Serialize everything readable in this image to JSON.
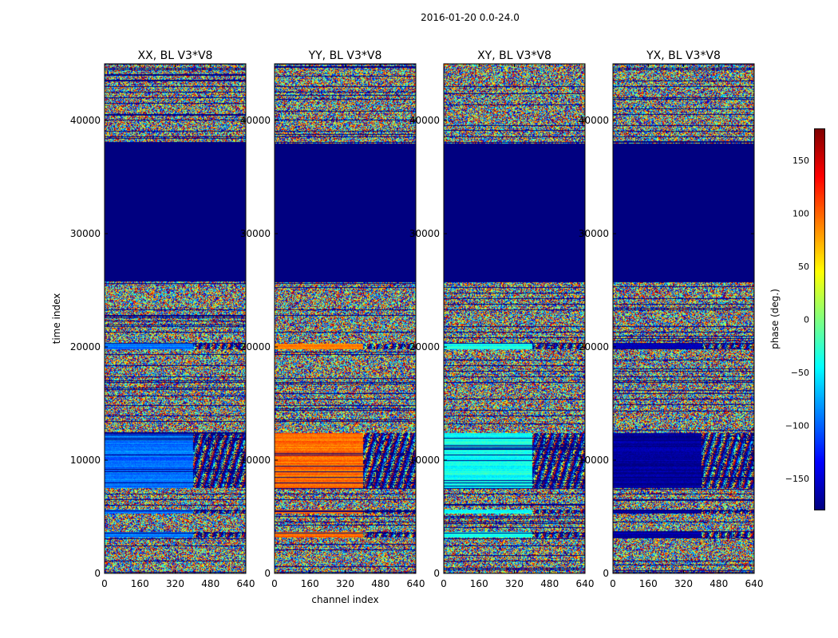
{
  "figure": {
    "suptitle": "2016-01-20 0.0-24.0"
  },
  "chart_data": [
    {
      "type": "heatmap",
      "title": "XX, BL V3*V8",
      "xlabel": "",
      "ylabel": "time index",
      "xlim": [
        0,
        640
      ],
      "ylim": [
        0,
        45000
      ],
      "xticks": [
        0,
        160,
        320,
        480,
        640
      ],
      "yticks": [
        0,
        10000,
        20000,
        30000,
        40000
      ],
      "base_phase": -95,
      "break_channel": 400
    },
    {
      "type": "heatmap",
      "title": "YY, BL V3*V8",
      "xlabel": "channel index",
      "ylabel": "",
      "xlim": [
        0,
        640
      ],
      "ylim": [
        0,
        45000
      ],
      "xticks": [
        0,
        160,
        320,
        480,
        640
      ],
      "yticks": [
        0,
        10000,
        20000,
        30000,
        40000
      ],
      "base_phase": 95,
      "break_channel": 400
    },
    {
      "type": "heatmap",
      "title": "XY, BL V3*V8",
      "xlabel": "",
      "ylabel": "",
      "xlim": [
        0,
        640
      ],
      "ylim": [
        0,
        45000
      ],
      "xticks": [
        0,
        160,
        320,
        480,
        640
      ],
      "yticks": [
        0,
        10000,
        20000,
        30000,
        40000
      ],
      "base_phase": -40,
      "break_channel": 400
    },
    {
      "type": "heatmap",
      "title": "YX, BL V3*V8",
      "xlabel": "",
      "ylabel": "",
      "xlim": [
        0,
        640
      ],
      "ylim": [
        0,
        45000
      ],
      "xticks": [
        0,
        160,
        320,
        480,
        640
      ],
      "yticks": [
        0,
        10000,
        20000,
        30000,
        40000
      ],
      "base_phase": -170,
      "break_channel": 400
    }
  ],
  "colorbar": {
    "label": "phase (deg.)",
    "range": [
      -180,
      180
    ],
    "ticks": [
      150,
      100,
      50,
      0,
      -50,
      -100,
      -150
    ],
    "tick_labels": [
      "150",
      "100",
      "50",
      "0",
      "−50",
      "−100",
      "−150"
    ],
    "colormap": "jet"
  },
  "time_structure": {
    "flagged_range": [
      25800,
      38000
    ],
    "flagged_phase": -180,
    "coherent_ranges": [
      [
        7600,
        12400
      ],
      [
        19800,
        20300
      ],
      [
        5300,
        5700
      ],
      [
        3200,
        3700
      ]
    ]
  }
}
